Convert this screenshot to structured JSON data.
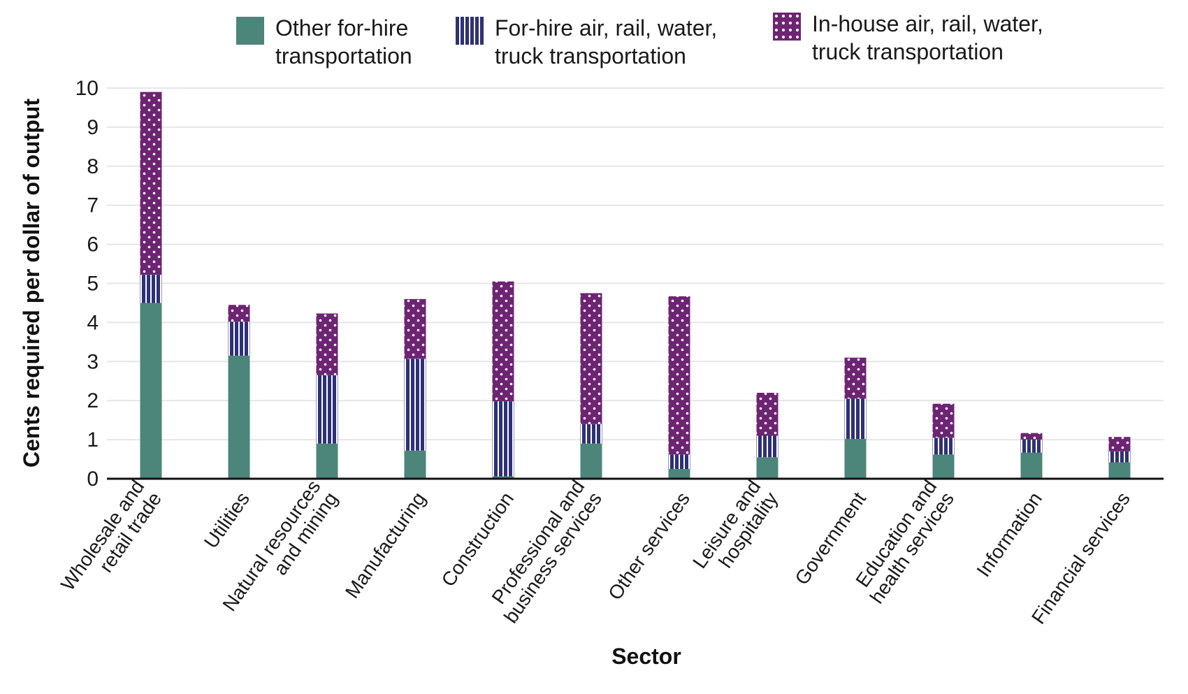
{
  "chart_data": {
    "type": "bar",
    "stacked": true,
    "xlabel": "Sector",
    "ylabel": "Cents required per dollar of output",
    "ylim": [
      0,
      10
    ],
    "yticks": [
      0,
      1,
      2,
      3,
      4,
      5,
      6,
      7,
      8,
      9,
      10
    ],
    "grid": true,
    "legend_position": "top",
    "categories": [
      [
        "Wholesale and",
        "retail trade"
      ],
      [
        "Utilities"
      ],
      [
        "Natural resources",
        "and mining"
      ],
      [
        "Manufacturing"
      ],
      [
        "Construction"
      ],
      [
        "Professional and",
        "business services"
      ],
      [
        "Other services"
      ],
      [
        "Leisure and",
        "hospitality"
      ],
      [
        "Government"
      ],
      [
        "Education and",
        "health services"
      ],
      [
        "Information"
      ],
      [
        "Financial services"
      ]
    ],
    "series": [
      {
        "name": "Other for-hire\ntransportation",
        "color": "#4c8579",
        "pattern": "solid",
        "values": [
          4.5,
          3.15,
          0.9,
          0.72,
          0.06,
          0.9,
          0.25,
          0.55,
          1.02,
          0.62,
          0.67,
          0.42
        ]
      },
      {
        "name": "For-hire air, rail, water,\ntruck transportation",
        "color": "#2e3175",
        "pattern": "vertical-lines",
        "values": [
          0.72,
          0.87,
          1.75,
          2.35,
          1.92,
          0.5,
          0.37,
          0.55,
          1.03,
          0.43,
          0.33,
          0.28
        ]
      },
      {
        "name": "In-house air, rail, water,\ntruck transportation",
        "color": "#6d2472",
        "pattern": "dots",
        "values": [
          4.68,
          0.43,
          1.58,
          1.53,
          3.07,
          3.35,
          4.05,
          1.1,
          1.05,
          0.87,
          0.17,
          0.37
        ]
      }
    ]
  }
}
